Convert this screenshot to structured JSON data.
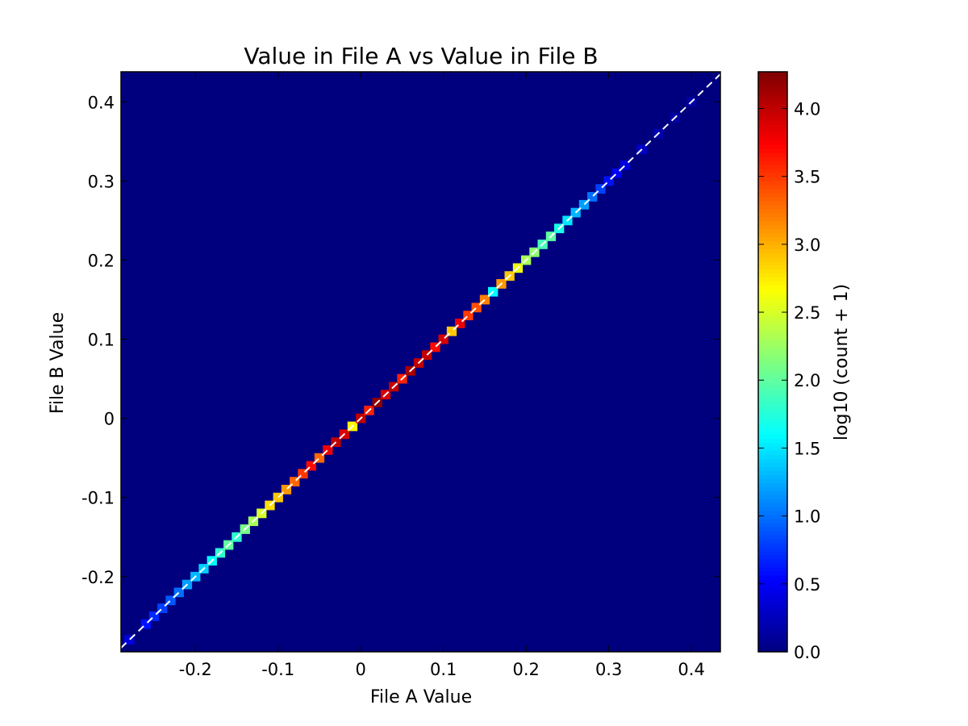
{
  "chart_data": {
    "type": "heatmap",
    "title": "Value in File A vs Value in File B",
    "xlabel": "File A Value",
    "ylabel": "File B Value",
    "xlim": [
      -0.29,
      0.435
    ],
    "ylim": [
      -0.295,
      0.438
    ],
    "xticks": [
      -0.2,
      -0.1,
      0,
      0.1,
      0.2,
      0.3,
      0.4
    ],
    "xtick_labels": [
      "-0.2",
      "-0.1",
      "0",
      "0.1",
      "0.2",
      "0.3",
      "0.4"
    ],
    "yticks": [
      -0.2,
      -0.1,
      0,
      0.1,
      0.2,
      0.3,
      0.4
    ],
    "ytick_labels": [
      "-0.2",
      "-0.1",
      "0",
      "0.1",
      "0.2",
      "0.3",
      "0.4"
    ],
    "background_color": "#00007f",
    "reference_line": {
      "style": "dashed",
      "color": "#ffffff",
      "slope": 1,
      "intercept": 0
    },
    "colorbar": {
      "label": "log10 (count + 1)",
      "range": [
        0,
        4.27
      ],
      "ticks": [
        0.0,
        0.5,
        1.0,
        1.5,
        2.0,
        2.5,
        3.0,
        3.5,
        4.0
      ],
      "tick_labels": [
        "0.0",
        "0.5",
        "1.0",
        "1.5",
        "2.0",
        "2.5",
        "3.0",
        "3.5",
        "4.0"
      ],
      "colormap": "jet"
    },
    "cells": [
      {
        "x": -0.28,
        "y": -0.28,
        "v": 0.4
      },
      {
        "x": -0.26,
        "y": -0.26,
        "v": 0.6
      },
      {
        "x": -0.25,
        "y": -0.25,
        "v": 0.7
      },
      {
        "x": -0.24,
        "y": -0.24,
        "v": 0.8
      },
      {
        "x": -0.23,
        "y": -0.23,
        "v": 0.9
      },
      {
        "x": -0.22,
        "y": -0.22,
        "v": 1.0
      },
      {
        "x": -0.21,
        "y": -0.21,
        "v": 1.2
      },
      {
        "x": -0.2,
        "y": -0.2,
        "v": 1.3
      },
      {
        "x": -0.19,
        "y": -0.19,
        "v": 1.4
      },
      {
        "x": -0.18,
        "y": -0.18,
        "v": 1.6
      },
      {
        "x": -0.17,
        "y": -0.17,
        "v": 1.8
      },
      {
        "x": -0.16,
        "y": -0.16,
        "v": 2.0
      },
      {
        "x": -0.15,
        "y": -0.15,
        "v": 1.8
      },
      {
        "x": -0.14,
        "y": -0.14,
        "v": 2.1
      },
      {
        "x": -0.13,
        "y": -0.13,
        "v": 2.3
      },
      {
        "x": -0.12,
        "y": -0.12,
        "v": 2.5
      },
      {
        "x": -0.11,
        "y": -0.11,
        "v": 2.8
      },
      {
        "x": -0.1,
        "y": -0.1,
        "v": 2.9
      },
      {
        "x": -0.09,
        "y": -0.09,
        "v": 3.1
      },
      {
        "x": -0.08,
        "y": -0.08,
        "v": 3.3
      },
      {
        "x": -0.07,
        "y": -0.07,
        "v": 3.5
      },
      {
        "x": -0.06,
        "y": -0.06,
        "v": 3.7
      },
      {
        "x": -0.05,
        "y": -0.05,
        "v": 3.3
      },
      {
        "x": -0.04,
        "y": -0.04,
        "v": 3.8
      },
      {
        "x": -0.03,
        "y": -0.03,
        "v": 4.0
      },
      {
        "x": -0.02,
        "y": -0.02,
        "v": 3.9
      },
      {
        "x": -0.01,
        "y": -0.01,
        "v": 2.7
      },
      {
        "x": 0.0,
        "y": 0.0,
        "v": 4.0
      },
      {
        "x": 0.01,
        "y": 0.01,
        "v": 3.6
      },
      {
        "x": 0.02,
        "y": 0.02,
        "v": 4.2
      },
      {
        "x": 0.03,
        "y": 0.03,
        "v": 3.9
      },
      {
        "x": 0.04,
        "y": 0.04,
        "v": 4.0
      },
      {
        "x": 0.05,
        "y": 0.05,
        "v": 3.6
      },
      {
        "x": 0.06,
        "y": 0.06,
        "v": 4.1
      },
      {
        "x": 0.07,
        "y": 0.07,
        "v": 4.0
      },
      {
        "x": 0.08,
        "y": 0.08,
        "v": 4.0
      },
      {
        "x": 0.09,
        "y": 0.09,
        "v": 3.7
      },
      {
        "x": 0.1,
        "y": 0.1,
        "v": 3.9
      },
      {
        "x": 0.11,
        "y": 0.11,
        "v": 2.9
      },
      {
        "x": 0.12,
        "y": 0.12,
        "v": 3.8
      },
      {
        "x": 0.13,
        "y": 0.13,
        "v": 3.5
      },
      {
        "x": 0.14,
        "y": 0.14,
        "v": 3.4
      },
      {
        "x": 0.15,
        "y": 0.15,
        "v": 3.2
      },
      {
        "x": 0.16,
        "y": 0.16,
        "v": 1.6
      },
      {
        "x": 0.17,
        "y": 0.17,
        "v": 3.1
      },
      {
        "x": 0.18,
        "y": 0.18,
        "v": 2.9
      },
      {
        "x": 0.19,
        "y": 0.19,
        "v": 2.6
      },
      {
        "x": 0.2,
        "y": 0.2,
        "v": 2.3
      },
      {
        "x": 0.21,
        "y": 0.21,
        "v": 2.2
      },
      {
        "x": 0.22,
        "y": 0.22,
        "v": 1.9
      },
      {
        "x": 0.23,
        "y": 0.23,
        "v": 2.0
      },
      {
        "x": 0.24,
        "y": 0.24,
        "v": 1.7
      },
      {
        "x": 0.25,
        "y": 0.25,
        "v": 1.5
      },
      {
        "x": 0.26,
        "y": 0.26,
        "v": 1.3
      },
      {
        "x": 0.27,
        "y": 0.27,
        "v": 1.2
      },
      {
        "x": 0.28,
        "y": 0.28,
        "v": 1.0
      },
      {
        "x": 0.29,
        "y": 0.29,
        "v": 0.8
      },
      {
        "x": 0.3,
        "y": 0.3,
        "v": 0.6
      },
      {
        "x": 0.31,
        "y": 0.31,
        "v": 0.5
      },
      {
        "x": 0.32,
        "y": 0.32,
        "v": 0.4
      },
      {
        "x": 0.34,
        "y": 0.34,
        "v": 0.3
      },
      {
        "x": 0.36,
        "y": 0.36,
        "v": 0.2
      },
      {
        "x": 0.38,
        "y": 0.38,
        "v": 0.15
      },
      {
        "x": 0.4,
        "y": 0.4,
        "v": 0.15
      }
    ]
  }
}
